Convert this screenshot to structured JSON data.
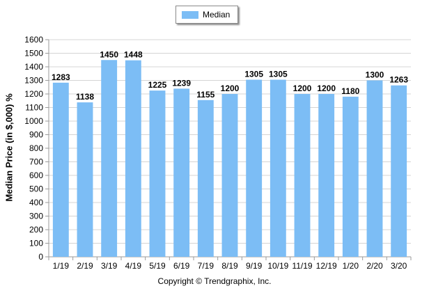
{
  "chart_data": {
    "type": "bar",
    "categories": [
      "1/19",
      "2/19",
      "3/19",
      "4/19",
      "5/19",
      "6/19",
      "7/19",
      "8/19",
      "9/19",
      "10/19",
      "11/19",
      "12/19",
      "1/20",
      "2/20",
      "3/20"
    ],
    "series": [
      {
        "name": "Median",
        "values": [
          1283,
          1138,
          1450,
          1448,
          1225,
          1239,
          1155,
          1200,
          1305,
          1305,
          1200,
          1200,
          1180,
          1300,
          1263
        ]
      }
    ],
    "ylabel": "Median Price (in $,000) %",
    "xlabel": "",
    "ylim": [
      0,
      1600
    ],
    "yticks": [
      0,
      100,
      200,
      300,
      400,
      500,
      600,
      700,
      800,
      900,
      1000,
      1100,
      1200,
      1300,
      1400,
      1500,
      1600
    ],
    "grid": true,
    "legend_position": "top-center",
    "bar_color": "#7cbdf5"
  },
  "legend": {
    "label": "Median"
  },
  "footer": {
    "copyright": "Copyright © Trendgraphix, Inc."
  }
}
